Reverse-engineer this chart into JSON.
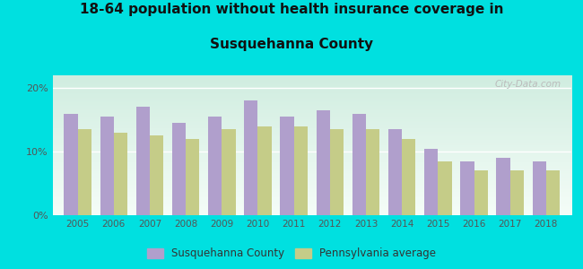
{
  "title_line1": "18-64 population without health insurance coverage in",
  "title_line2": "Susquehanna County",
  "years": [
    2005,
    2006,
    2007,
    2008,
    2009,
    2010,
    2011,
    2012,
    2013,
    2014,
    2015,
    2016,
    2017,
    2018
  ],
  "susquehanna": [
    16.0,
    15.5,
    17.0,
    14.5,
    15.5,
    18.0,
    15.5,
    16.5,
    16.0,
    13.5,
    10.5,
    8.5,
    9.0,
    8.5
  ],
  "pennsylvania": [
    13.5,
    13.0,
    12.5,
    12.0,
    13.5,
    14.0,
    14.0,
    13.5,
    13.5,
    12.0,
    8.5,
    7.0,
    7.0,
    7.0
  ],
  "susquehanna_color": "#b09fcc",
  "pennsylvania_color": "#c5cc88",
  "background_outer": "#00e0e0",
  "background_inner_top": "#d0ede0",
  "background_inner_bottom": "#f5fdf8",
  "yticks": [
    0,
    10,
    20
  ],
  "ylim": [
    0,
    22
  ],
  "legend_susquehanna": "Susquehanna County",
  "legend_pennsylvania": "Pennsylvania average",
  "watermark": "City-Data.com",
  "title_fontsize": 11,
  "bar_width": 0.38
}
